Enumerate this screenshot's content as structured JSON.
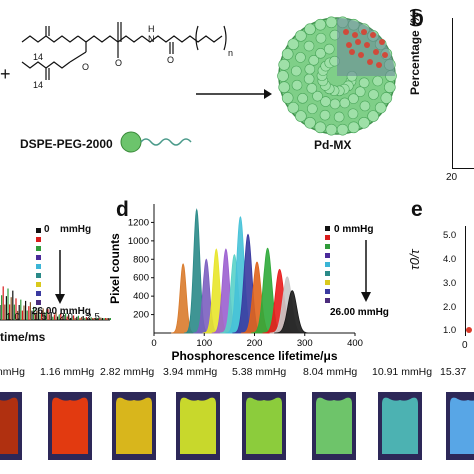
{
  "panels": {
    "b": "b",
    "d": "d",
    "e": "e"
  },
  "chem": {
    "n14a": "14",
    "n14b": "14",
    "oxy": "O",
    "pminus": "O",
    "n_sub": "n",
    "h": "H",
    "nn": "N",
    "o_eq": "O",
    "plus": "+",
    "dspe_label": "DSPE-PEG-2000",
    "pdmx_label": "Pd-MX"
  },
  "panel_b": {
    "ylabel": "Percentage (%)",
    "tick_20": "20"
  },
  "panel_c": {
    "legend_0": "0",
    "legend_unit": "mmHg",
    "legend_last": "26.00 mmHg",
    "xlabel": "time/ms",
    "xticks": [
      "1.0",
      "1.5",
      "2.0",
      "2.5"
    ]
  },
  "panel_e": {
    "ylabel": "τ0/τ",
    "yticks": [
      "5.0",
      "4.0",
      "3.0",
      "2.0",
      "1.0"
    ],
    "xtick0": "0"
  },
  "chart_data": {
    "type": "area",
    "xlabel": "Phosphorescence lifetime/μs",
    "ylabel": "Pixel counts",
    "xlim": [
      0,
      400
    ],
    "ylim": [
      0,
      1400
    ],
    "xticks": [
      0,
      100,
      200,
      300,
      400
    ],
    "yticks": [
      200,
      400,
      600,
      800,
      1000,
      1200
    ],
    "legend_top": "0     mmHg",
    "legend_bottom": "26.00 mmHg",
    "series": [
      {
        "center": 58,
        "peak": 750,
        "color": "#d97b2c"
      },
      {
        "center": 85,
        "peak": 1340,
        "color": "#2a8a88"
      },
      {
        "center": 104,
        "peak": 800,
        "color": "#7b5fc0"
      },
      {
        "center": 124,
        "peak": 910,
        "color": "#e8e52a"
      },
      {
        "center": 143,
        "peak": 910,
        "color": "#9b5fd0"
      },
      {
        "center": 160,
        "peak": 850,
        "color": "#5ad2c8"
      },
      {
        "center": 172,
        "peak": 1260,
        "color": "#46c2d8"
      },
      {
        "center": 187,
        "peak": 1070,
        "color": "#3a3aa0"
      },
      {
        "center": 205,
        "peak": 770,
        "color": "#e0641c"
      },
      {
        "center": 226,
        "peak": 920,
        "color": "#2faa3a"
      },
      {
        "center": 250,
        "peak": 690,
        "color": "#e81c1c"
      },
      {
        "center": 265,
        "peak": 610,
        "color": "#c8c8c8"
      },
      {
        "center": 275,
        "peak": 460,
        "color": "#1a1a1a"
      }
    ],
    "legend_colors": [
      "#111111",
      "#d91c1c",
      "#2f9b3a",
      "#4a2a9a",
      "#3bb5d6",
      "#2a8a88",
      "#d9c91c",
      "#3a3aa0",
      "#4b2c7c"
    ]
  },
  "tiles": {
    "labels": [
      "mmHg",
      "1.16  mmHg",
      "2.82  mmHg",
      "3.94  mmHg",
      "5.38  mmHg",
      "8.04  mmHg",
      "10.91  mmHg",
      "15.37"
    ],
    "colors": [
      "#b03010",
      "#e23a10",
      "#d8b61c",
      "#c8d82c",
      "#8ccc3c",
      "#6ec46a",
      "#4cb2b2",
      "#58a6e6"
    ]
  }
}
